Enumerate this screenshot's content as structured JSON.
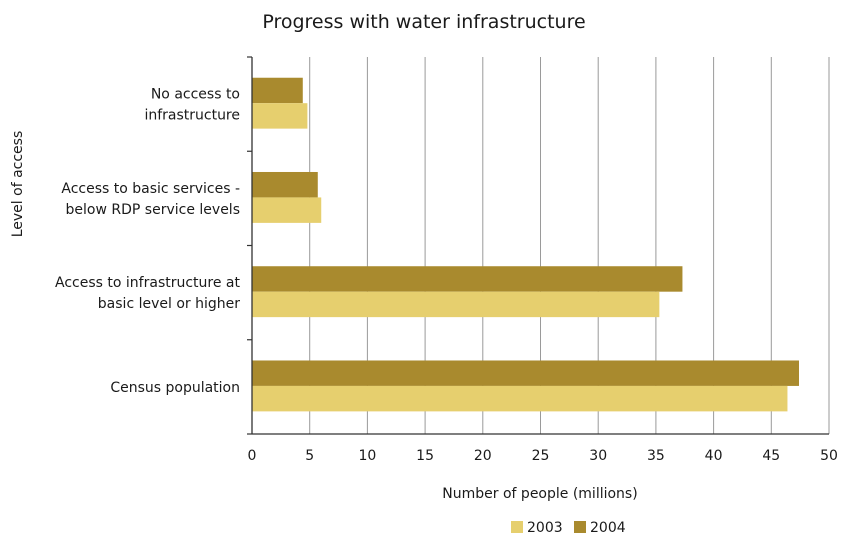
{
  "chart_data": {
    "type": "bar",
    "orientation": "horizontal",
    "title": "Progress with water infrastructure",
    "xlabel": "Number of people (millions)",
    "ylabel": "Level of access",
    "xlim": [
      0,
      50
    ],
    "xticks": [
      0,
      5,
      10,
      15,
      20,
      25,
      30,
      35,
      40,
      45,
      50
    ],
    "grid": true,
    "legend_position": "bottom",
    "categories": [
      [
        "No access to",
        "infrastructure"
      ],
      [
        "Access to basic services -",
        "below RDP service levels"
      ],
      [
        "Access to infrastructure at",
        "basic level or higher"
      ],
      [
        "Census population"
      ]
    ],
    "series": [
      {
        "name": "2003",
        "color": "#e6cf6e",
        "values": [
          4.8,
          6.0,
          35.3,
          46.4
        ]
      },
      {
        "name": "2004",
        "color": "#a98a2e",
        "values": [
          4.4,
          5.7,
          37.3,
          47.4
        ]
      }
    ]
  }
}
